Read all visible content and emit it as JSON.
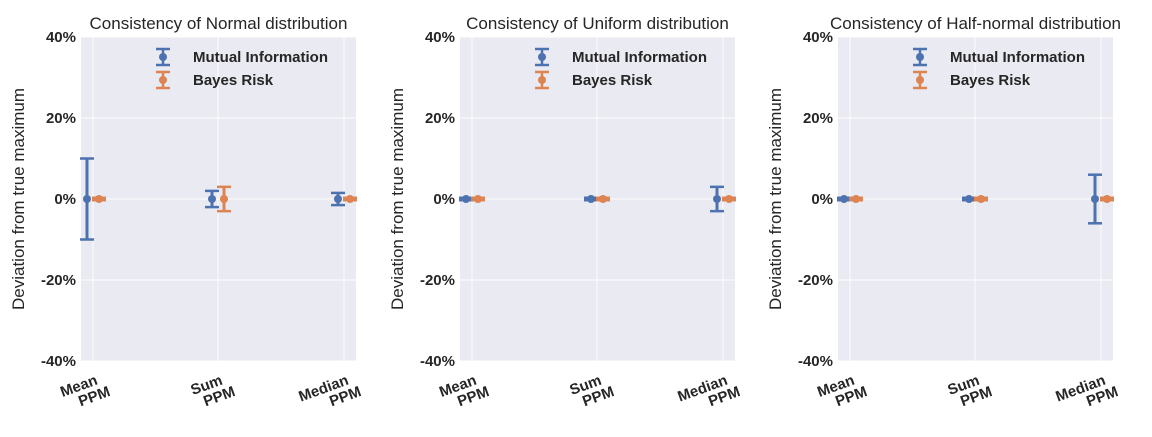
{
  "chart_data": [
    {
      "type": "errorbar",
      "title": "Consistency of Normal distribution",
      "ylabel": "Deviation from true maximum",
      "ylim": [
        -40,
        40
      ],
      "yticks": [
        "-40%",
        "-20%",
        "0%",
        "20%",
        "40%"
      ],
      "ytick_values": [
        -40,
        -20,
        0,
        20,
        40
      ],
      "categories": [
        [
          "Mean",
          "PPM"
        ],
        [
          "Sum",
          "PPM"
        ],
        [
          "Median",
          "PPM"
        ]
      ],
      "legend_position": "top-right",
      "grid": true,
      "series": [
        {
          "name": "Mutual Information",
          "color": "#4c72b0",
          "values": [
            0,
            0,
            0
          ],
          "errors": [
            10,
            2,
            1.5
          ]
        },
        {
          "name": "Bayes Risk",
          "color": "#dd8452",
          "values": [
            0,
            0,
            0
          ],
          "errors": [
            0.3,
            3,
            0.3
          ]
        }
      ]
    },
    {
      "type": "errorbar",
      "title": "Consistency of Uniform distribution",
      "ylabel": "Deviation from true maximum",
      "ylim": [
        -40,
        40
      ],
      "yticks": [
        "-40%",
        "-20%",
        "0%",
        "20%",
        "40%"
      ],
      "ytick_values": [
        -40,
        -20,
        0,
        20,
        40
      ],
      "categories": [
        [
          "Mean",
          "PPM"
        ],
        [
          "Sum",
          "PPM"
        ],
        [
          "Median",
          "PPM"
        ]
      ],
      "legend_position": "top-right",
      "grid": true,
      "series": [
        {
          "name": "Mutual Information",
          "color": "#4c72b0",
          "values": [
            0,
            0,
            0
          ],
          "errors": [
            0.3,
            0.3,
            3
          ]
        },
        {
          "name": "Bayes Risk",
          "color": "#dd8452",
          "values": [
            0,
            0,
            0
          ],
          "errors": [
            0.3,
            0.3,
            0.3
          ]
        }
      ]
    },
    {
      "type": "errorbar",
      "title": "Consistency of Half-normal distribution",
      "ylabel": "Deviation from true maximum",
      "ylim": [
        -40,
        40
      ],
      "yticks": [
        "-40%",
        "-20%",
        "0%",
        "20%",
        "40%"
      ],
      "ytick_values": [
        -40,
        -20,
        0,
        20,
        40
      ],
      "categories": [
        [
          "Mean",
          "PPM"
        ],
        [
          "Sum",
          "PPM"
        ],
        [
          "Median",
          "PPM"
        ]
      ],
      "legend_position": "top-right",
      "grid": true,
      "series": [
        {
          "name": "Mutual Information",
          "color": "#4c72b0",
          "values": [
            0,
            0,
            0
          ],
          "errors": [
            0.3,
            0.3,
            6
          ]
        },
        {
          "name": "Bayes Risk",
          "color": "#dd8452",
          "values": [
            0,
            0,
            0
          ],
          "errors": [
            0.3,
            0.3,
            0.3
          ]
        }
      ]
    }
  ],
  "style": {
    "plot_background": "#eaeaf2",
    "grid_color": "#ffffff",
    "text_color": "#262626"
  }
}
